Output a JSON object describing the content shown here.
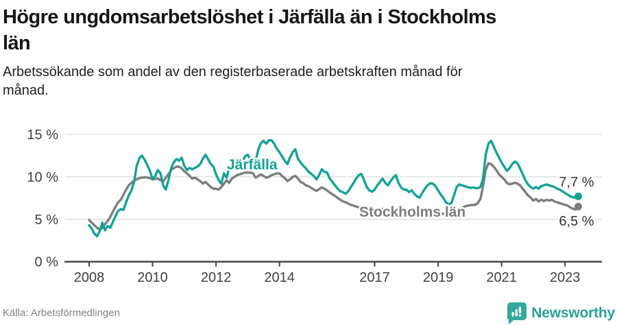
{
  "header": {
    "title": "Högre ungdomsarbetslöshet i Järfälla än i Stockholms län",
    "title_lines": [
      "Högre ungdomsarbetslöshet i Järfälla än i Stockholms",
      "län"
    ],
    "subtitle": "Arbetssökande som andel av den registerbaserade arbetskraften månad för månad.",
    "subtitle_lines": [
      "Arbetssökande som andel av den registerbaserade arbetskraften månad för",
      "månad."
    ]
  },
  "chart_data": {
    "type": "line",
    "unit": "percent of registered labour force",
    "frequency": "monthly",
    "x_start": "2008-01",
    "x_end": "2023-06",
    "ylim": [
      0,
      16
    ],
    "grid": "horizontal",
    "legend_position": "inline-labels",
    "yticks": [
      {
        "value": 0,
        "label": "0 %"
      },
      {
        "value": 5,
        "label": "5 %"
      },
      {
        "value": 10,
        "label": "10 %"
      },
      {
        "value": 15,
        "label": "15 %"
      }
    ],
    "xticks": [
      {
        "year": 2008,
        "label": "2008"
      },
      {
        "year": 2010,
        "label": "2010"
      },
      {
        "year": 2012,
        "label": "2012"
      },
      {
        "year": 2014,
        "label": "2014"
      },
      {
        "year": 2017,
        "label": "2017"
      },
      {
        "year": 2019,
        "label": "2019"
      },
      {
        "year": 2021,
        "label": "2021"
      },
      {
        "year": 2023,
        "label": "2023"
      }
    ],
    "series": [
      {
        "name": "Stockholms län",
        "color": "#7d7d7d",
        "end_label": "6,5 %",
        "last_value": 6.5,
        "values": [
          4.9,
          4.6,
          4.3,
          4.0,
          3.8,
          4.0,
          4.4,
          4.8,
          5.3,
          5.9,
          6.5,
          7.0,
          7.3,
          7.9,
          8.5,
          9.0,
          9.3,
          9.55,
          9.7,
          9.85,
          9.9,
          9.95,
          9.9,
          9.85,
          9.7,
          9.75,
          9.8,
          9.6,
          9.4,
          9.9,
          10.3,
          10.8,
          11.0,
          11.2,
          11.2,
          11.0,
          10.65,
          10.4,
          10.1,
          9.8,
          9.9,
          9.7,
          9.5,
          9.2,
          9.4,
          9.1,
          8.8,
          8.6,
          8.6,
          8.5,
          8.8,
          9.2,
          9.6,
          9.3,
          9.8,
          10.0,
          10.2,
          10.3,
          10.4,
          10.5,
          10.5,
          10.5,
          10.4,
          9.9,
          10.1,
          10.3,
          10.1,
          9.9,
          10.0,
          10.2,
          10.3,
          10.4,
          10.4,
          10.1,
          9.85,
          9.5,
          9.7,
          10.0,
          10.1,
          9.8,
          9.4,
          9.25,
          9.0,
          8.9,
          8.7,
          8.5,
          8.35,
          8.55,
          8.75,
          8.6,
          8.4,
          8.15,
          7.95,
          7.75,
          7.5,
          7.3,
          7.1,
          7.0,
          6.85,
          6.7,
          6.6,
          6.5,
          6.4,
          6.3,
          6.25,
          6.2,
          6.15,
          6.1,
          6.1,
          6.1,
          6.15,
          6.2,
          6.25,
          6.2,
          6.2,
          6.25,
          6.2,
          6.15,
          6.1,
          6.05,
          6.05,
          6.0,
          5.95,
          5.9,
          5.9,
          5.95,
          6.0,
          6.0,
          5.95,
          5.9,
          5.85,
          5.8,
          5.75,
          5.7,
          5.65,
          5.6,
          5.6,
          5.65,
          5.8,
          5.95,
          6.1,
          6.3,
          6.5,
          6.6,
          6.65,
          6.7,
          6.7,
          6.9,
          7.4,
          8.9,
          10.8,
          11.6,
          11.5,
          11.2,
          10.8,
          10.3,
          10.0,
          9.7,
          9.3,
          9.1,
          9.2,
          9.3,
          9.2,
          9.0,
          8.6,
          8.2,
          7.8,
          7.55,
          7.2,
          7.4,
          7.1,
          7.3,
          7.15,
          7.3,
          7.2,
          7.3,
          7.1,
          7.0,
          6.9,
          6.8,
          6.7,
          6.6,
          6.4,
          6.25,
          6.15,
          6.5
        ]
      },
      {
        "name": "Järfälla",
        "color": "#13a296",
        "end_label": "7,7 %",
        "last_value": 7.7,
        "values": [
          4.3,
          3.9,
          3.3,
          3.0,
          3.6,
          4.6,
          3.7,
          4.2,
          4.0,
          4.7,
          5.4,
          6.0,
          6.2,
          6.1,
          7.0,
          7.8,
          8.4,
          9.4,
          11.3,
          12.2,
          12.5,
          12.0,
          11.4,
          10.7,
          9.7,
          10.1,
          10.8,
          10.4,
          9.0,
          8.5,
          9.6,
          11.0,
          11.7,
          12.1,
          11.9,
          12.25,
          11.3,
          10.8,
          11.05,
          10.9,
          11.05,
          11.2,
          11.5,
          12.1,
          12.6,
          12.1,
          11.5,
          11.2,
          10.3,
          9.6,
          9.2,
          10.4,
          9.9,
          11.0,
          11.4,
          11.0,
          11.2,
          11.5,
          11.8,
          12.4,
          12.6,
          12.0,
          11.5,
          11.9,
          13.2,
          14.0,
          14.25,
          13.9,
          14.3,
          14.3,
          13.9,
          13.3,
          12.9,
          12.4,
          11.9,
          11.5,
          12.3,
          12.9,
          13.25,
          12.1,
          11.7,
          11.3,
          11.0,
          10.6,
          10.35,
          10.1,
          9.7,
          10.2,
          10.9,
          10.6,
          10.5,
          9.8,
          9.4,
          9.0,
          8.6,
          8.3,
          8.2,
          8.0,
          8.3,
          8.8,
          9.3,
          9.8,
          10.2,
          10.35,
          9.6,
          8.8,
          8.4,
          8.25,
          8.5,
          9.0,
          9.4,
          9.8,
          9.3,
          9.0,
          9.5,
          9.9,
          10.2,
          9.3,
          8.75,
          8.5,
          8.5,
          8.2,
          8.4,
          8.0,
          7.7,
          7.55,
          8.1,
          8.6,
          9.0,
          9.25,
          9.2,
          8.9,
          8.4,
          7.9,
          7.5,
          7.0,
          6.75,
          6.9,
          7.8,
          8.8,
          9.1,
          9.0,
          8.9,
          8.8,
          8.7,
          8.75,
          8.7,
          8.65,
          8.8,
          9.8,
          12.6,
          13.9,
          14.25,
          13.6,
          12.9,
          12.3,
          11.7,
          11.2,
          10.7,
          11.0,
          11.5,
          11.8,
          11.6,
          11.0,
          10.3,
          9.6,
          9.1,
          8.8,
          8.6,
          8.8,
          8.6,
          8.9,
          9.0,
          9.1,
          9.0,
          8.9,
          8.8,
          8.6,
          8.5,
          8.3,
          8.1,
          7.9,
          7.7,
          7.6,
          7.5,
          7.7
        ]
      }
    ]
  },
  "footer": {
    "source": "Källa: Arbetsförmedlingen",
    "brand": "Newsworthy"
  },
  "colors": {
    "jarfalla": "#13a296",
    "stockholm": "#7d7d7d",
    "grid": "#d9dcdc",
    "axis": "#3a4044",
    "tick_text": "#404040",
    "value_text": "#333333",
    "logo": "#35a79b"
  }
}
